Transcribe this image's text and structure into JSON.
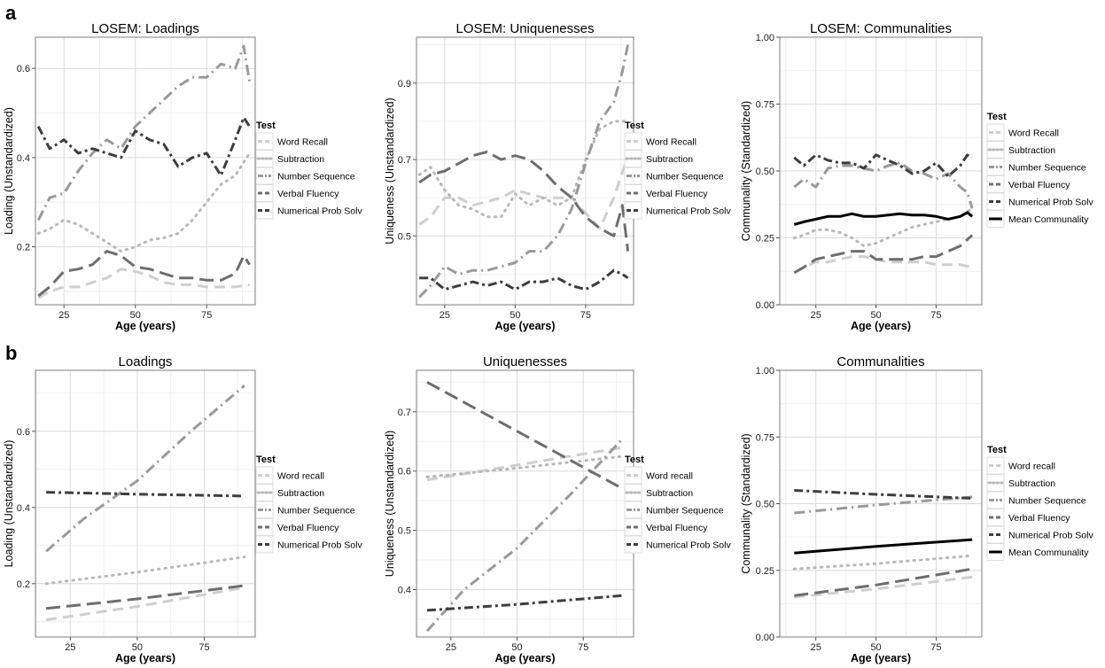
{
  "panel_labels": [
    "a",
    "b"
  ],
  "legend_title": "Test",
  "chart_data": [
    {
      "type": "line",
      "title": "LOSEM: Loadings",
      "xlabel": "Age (years)",
      "ylabel": "Loading (Unstandardized)",
      "xlim": [
        15,
        92
      ],
      "ylim": [
        0.07,
        0.67
      ],
      "xticks": [
        25,
        50,
        75
      ],
      "yticks": [
        0.2,
        0.4,
        0.6
      ],
      "ytick_labels": [
        "0.2",
        "0.4",
        "0.6"
      ],
      "grid": true,
      "legend": "right",
      "series": [
        {
          "name": "Word Recall",
          "x": [
            16,
            20,
            25,
            30,
            35,
            40,
            45,
            50,
            55,
            60,
            65,
            70,
            75,
            80,
            85,
            90
          ],
          "y": [
            0.085,
            0.1,
            0.11,
            0.11,
            0.12,
            0.13,
            0.15,
            0.145,
            0.135,
            0.12,
            0.115,
            0.115,
            0.11,
            0.11,
            0.11,
            0.115
          ]
        },
        {
          "name": "Subtraction",
          "x": [
            16,
            20,
            25,
            30,
            35,
            40,
            45,
            50,
            55,
            60,
            65,
            70,
            75,
            80,
            85,
            90
          ],
          "y": [
            0.23,
            0.24,
            0.26,
            0.25,
            0.23,
            0.21,
            0.19,
            0.2,
            0.215,
            0.22,
            0.23,
            0.26,
            0.3,
            0.34,
            0.36,
            0.41
          ]
        },
        {
          "name": "Number Sequence",
          "x": [
            16,
            20,
            25,
            30,
            35,
            40,
            45,
            50,
            55,
            60,
            65,
            70,
            75,
            80,
            85,
            88,
            90
          ],
          "y": [
            0.26,
            0.31,
            0.32,
            0.37,
            0.41,
            0.44,
            0.42,
            0.47,
            0.5,
            0.53,
            0.56,
            0.58,
            0.58,
            0.61,
            0.6,
            0.65,
            0.57
          ]
        },
        {
          "name": "Verbal Fluency",
          "x": [
            16,
            20,
            25,
            30,
            35,
            40,
            45,
            50,
            55,
            60,
            65,
            70,
            75,
            80,
            85,
            88,
            90
          ],
          "y": [
            0.09,
            0.11,
            0.145,
            0.15,
            0.16,
            0.19,
            0.18,
            0.155,
            0.15,
            0.14,
            0.13,
            0.13,
            0.125,
            0.125,
            0.14,
            0.18,
            0.16
          ]
        },
        {
          "name": "Numerical Prob Solv",
          "x": [
            16,
            20,
            25,
            30,
            35,
            40,
            45,
            50,
            55,
            60,
            65,
            70,
            75,
            80,
            85,
            88,
            90
          ],
          "y": [
            0.47,
            0.42,
            0.44,
            0.41,
            0.42,
            0.41,
            0.4,
            0.46,
            0.44,
            0.43,
            0.38,
            0.4,
            0.41,
            0.36,
            0.44,
            0.49,
            0.47
          ]
        }
      ]
    },
    {
      "type": "line",
      "title": "LOSEM: Uniquenesses",
      "xlabel": "Age (years)",
      "ylabel": "Uniqueness (Unstandardized)",
      "xlim": [
        15,
        92
      ],
      "ylim": [
        0.32,
        1.02
      ],
      "xticks": [
        25,
        50,
        75
      ],
      "yticks": [
        0.5,
        0.7,
        0.9
      ],
      "ytick_labels": [
        "0.5",
        "0.7",
        "0.9"
      ],
      "grid": true,
      "legend": "right",
      "series": [
        {
          "name": "Word Recall",
          "x": [
            16,
            20,
            25,
            30,
            35,
            40,
            45,
            50,
            55,
            60,
            65,
            70,
            75,
            80,
            85,
            90
          ],
          "y": [
            0.53,
            0.55,
            0.6,
            0.6,
            0.58,
            0.59,
            0.6,
            0.62,
            0.61,
            0.6,
            0.6,
            0.6,
            0.56,
            0.52,
            0.6,
            0.71
          ]
        },
        {
          "name": "Subtraction",
          "x": [
            16,
            20,
            25,
            30,
            35,
            40,
            45,
            50,
            55,
            60,
            65,
            70,
            75,
            80,
            85,
            90
          ],
          "y": [
            0.66,
            0.68,
            0.62,
            0.58,
            0.57,
            0.55,
            0.55,
            0.61,
            0.58,
            0.6,
            0.58,
            0.6,
            0.7,
            0.78,
            0.8,
            0.8
          ]
        },
        {
          "name": "Number Sequence",
          "x": [
            16,
            20,
            25,
            30,
            35,
            40,
            45,
            50,
            55,
            60,
            65,
            70,
            75,
            80,
            85,
            88,
            90
          ],
          "y": [
            0.34,
            0.37,
            0.42,
            0.4,
            0.41,
            0.41,
            0.42,
            0.43,
            0.46,
            0.46,
            0.5,
            0.57,
            0.69,
            0.8,
            0.85,
            0.93,
            1.0
          ]
        },
        {
          "name": "Verbal Fluency",
          "x": [
            16,
            20,
            25,
            30,
            35,
            40,
            45,
            50,
            55,
            60,
            65,
            70,
            75,
            80,
            85,
            88,
            90
          ],
          "y": [
            0.64,
            0.66,
            0.67,
            0.69,
            0.71,
            0.72,
            0.7,
            0.71,
            0.7,
            0.67,
            0.63,
            0.6,
            0.55,
            0.52,
            0.5,
            0.58,
            0.46
          ]
        },
        {
          "name": "Numerical Prob Solv",
          "x": [
            16,
            20,
            25,
            30,
            35,
            40,
            45,
            50,
            55,
            60,
            65,
            70,
            75,
            80,
            85,
            88,
            90
          ],
          "y": [
            0.39,
            0.39,
            0.36,
            0.37,
            0.38,
            0.37,
            0.38,
            0.36,
            0.38,
            0.38,
            0.39,
            0.37,
            0.36,
            0.38,
            0.41,
            0.4,
            0.39
          ]
        }
      ]
    },
    {
      "type": "line",
      "title": "LOSEM: Communalities",
      "xlabel": "Age (years)",
      "ylabel": "Communality (Standardized)",
      "xlim": [
        10,
        94
      ],
      "ylim": [
        0,
        1
      ],
      "xticks": [
        25,
        50,
        75
      ],
      "yticks": [
        0,
        0.25,
        0.5,
        0.75,
        1
      ],
      "ytick_labels": [
        "0.00",
        "0.25",
        "0.50",
        "0.75",
        "1.00"
      ],
      "grid": true,
      "legend": "right",
      "series": [
        {
          "name": "Word Recall",
          "x": [
            16,
            20,
            25,
            30,
            35,
            40,
            45,
            50,
            55,
            60,
            65,
            70,
            75,
            80,
            85,
            90
          ],
          "y": [
            0.12,
            0.14,
            0.16,
            0.16,
            0.17,
            0.18,
            0.18,
            0.17,
            0.16,
            0.16,
            0.16,
            0.16,
            0.15,
            0.15,
            0.15,
            0.14
          ]
        },
        {
          "name": "Subtraction",
          "x": [
            16,
            20,
            25,
            30,
            35,
            40,
            45,
            50,
            55,
            60,
            65,
            70,
            75,
            80,
            85,
            90
          ],
          "y": [
            0.25,
            0.26,
            0.28,
            0.28,
            0.27,
            0.25,
            0.22,
            0.23,
            0.25,
            0.27,
            0.29,
            0.3,
            0.31,
            0.32,
            0.33,
            0.36
          ]
        },
        {
          "name": "Number Sequence",
          "x": [
            16,
            20,
            25,
            30,
            35,
            40,
            45,
            50,
            55,
            60,
            65,
            70,
            75,
            80,
            85,
            88,
            90
          ],
          "y": [
            0.44,
            0.47,
            0.44,
            0.51,
            0.52,
            0.52,
            0.51,
            0.5,
            0.52,
            0.53,
            0.5,
            0.49,
            0.47,
            0.49,
            0.44,
            0.42,
            0.36
          ]
        },
        {
          "name": "Verbal Fluency",
          "x": [
            16,
            20,
            25,
            30,
            35,
            40,
            45,
            50,
            55,
            60,
            65,
            70,
            75,
            80,
            85,
            90
          ],
          "y": [
            0.12,
            0.14,
            0.17,
            0.18,
            0.19,
            0.2,
            0.2,
            0.17,
            0.17,
            0.17,
            0.17,
            0.18,
            0.18,
            0.2,
            0.22,
            0.26
          ]
        },
        {
          "name": "Numerical Prob Solv",
          "x": [
            16,
            20,
            25,
            30,
            35,
            40,
            45,
            50,
            55,
            60,
            65,
            70,
            75,
            80,
            85,
            88,
            90
          ],
          "y": [
            0.55,
            0.52,
            0.56,
            0.54,
            0.53,
            0.53,
            0.51,
            0.56,
            0.54,
            0.52,
            0.49,
            0.5,
            0.53,
            0.48,
            0.52,
            0.56,
            0.55
          ]
        },
        {
          "name": "Mean Communality",
          "x": [
            16,
            20,
            25,
            30,
            35,
            40,
            45,
            50,
            55,
            60,
            65,
            70,
            75,
            80,
            85,
            88,
            90
          ],
          "y": [
            0.3,
            0.31,
            0.32,
            0.33,
            0.33,
            0.34,
            0.33,
            0.33,
            0.335,
            0.34,
            0.335,
            0.335,
            0.33,
            0.32,
            0.33,
            0.345,
            0.33
          ]
        }
      ]
    },
    {
      "type": "line",
      "title": "Loadings",
      "xlabel": "Age (years)",
      "ylabel": "Loading (Unstandardized)",
      "xlim": [
        12,
        94
      ],
      "ylim": [
        0.06,
        0.76
      ],
      "xticks": [
        25,
        50,
        75
      ],
      "yticks": [
        0.2,
        0.4,
        0.6
      ],
      "ytick_labels": [
        "0.2",
        "0.4",
        "0.6"
      ],
      "grid": true,
      "legend": "right",
      "series": [
        {
          "name": "Word recall",
          "x": [
            16,
            50,
            90
          ],
          "y": [
            0.105,
            0.14,
            0.19
          ]
        },
        {
          "name": "Subtraction",
          "x": [
            16,
            50,
            90
          ],
          "y": [
            0.2,
            0.23,
            0.27
          ]
        },
        {
          "name": "Number Sequence",
          "x": [
            16,
            30,
            50,
            70,
            90
          ],
          "y": [
            0.285,
            0.37,
            0.47,
            0.6,
            0.72
          ]
        },
        {
          "name": "Verbal Fluency",
          "x": [
            16,
            50,
            90
          ],
          "y": [
            0.135,
            0.16,
            0.195
          ]
        },
        {
          "name": "Numerical Prob Solv",
          "x": [
            16,
            50,
            90
          ],
          "y": [
            0.44,
            0.435,
            0.43
          ]
        }
      ]
    },
    {
      "type": "line",
      "title": "Uniquenesses",
      "xlabel": "Age (years)",
      "ylabel": "Uniqueness (Unstandardized)",
      "xlim": [
        12,
        94
      ],
      "ylim": [
        0.32,
        0.77
      ],
      "xticks": [
        25,
        50,
        75
      ],
      "yticks": [
        0.4,
        0.5,
        0.6,
        0.7
      ],
      "ytick_labels": [
        "0.4",
        "0.5",
        "0.6",
        "0.7"
      ],
      "grid": true,
      "legend": "right",
      "series": [
        {
          "name": "Word recall",
          "x": [
            16,
            50,
            90
          ],
          "y": [
            0.585,
            0.61,
            0.64
          ]
        },
        {
          "name": "Subtraction",
          "x": [
            16,
            50,
            90
          ],
          "y": [
            0.59,
            0.605,
            0.625
          ]
        },
        {
          "name": "Number Sequence",
          "x": [
            16,
            30,
            50,
            70,
            90
          ],
          "y": [
            0.33,
            0.4,
            0.47,
            0.56,
            0.655
          ]
        },
        {
          "name": "Verbal Fluency",
          "x": [
            16,
            90
          ],
          "y": [
            0.75,
            0.57
          ]
        },
        {
          "name": "Numerical Prob Solv",
          "x": [
            16,
            50,
            90
          ],
          "y": [
            0.365,
            0.375,
            0.39
          ]
        }
      ]
    },
    {
      "type": "line",
      "title": "Communalities",
      "xlabel": "Age (years)",
      "ylabel": "Communality (Standardized)",
      "xlim": [
        10,
        94
      ],
      "ylim": [
        0,
        1
      ],
      "xticks": [
        25,
        50,
        75
      ],
      "yticks": [
        0,
        0.25,
        0.5,
        0.75,
        1
      ],
      "ytick_labels": [
        "0.00",
        "0.25",
        "0.50",
        "0.75",
        "1.00"
      ],
      "grid": true,
      "legend": "right",
      "series": [
        {
          "name": "Word recall",
          "x": [
            16,
            50,
            90
          ],
          "y": [
            0.15,
            0.18,
            0.225
          ]
        },
        {
          "name": "Subtraction",
          "x": [
            16,
            50,
            90
          ],
          "y": [
            0.255,
            0.275,
            0.305
          ]
        },
        {
          "name": "Number Sequence",
          "x": [
            16,
            50,
            90
          ],
          "y": [
            0.465,
            0.495,
            0.525
          ]
        },
        {
          "name": "Verbal Fluency",
          "x": [
            16,
            50,
            90
          ],
          "y": [
            0.155,
            0.195,
            0.255
          ]
        },
        {
          "name": "Numerical Prob Solv",
          "x": [
            16,
            50,
            90
          ],
          "y": [
            0.55,
            0.535,
            0.52
          ]
        },
        {
          "name": "Mean Communality",
          "x": [
            16,
            50,
            90
          ],
          "y": [
            0.315,
            0.34,
            0.365
          ]
        }
      ]
    }
  ]
}
